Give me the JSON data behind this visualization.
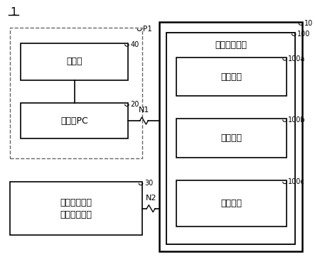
{
  "bg_color": "#ffffff",
  "fig_label": "1",
  "p1_label": "P1",
  "label_10": "10",
  "label_100": "100",
  "label_40": "40",
  "label_20": "20",
  "label_30": "30",
  "label_100a": "100a",
  "label_100b": "100b",
  "label_100c": "100c",
  "label_N1": "N1",
  "label_N2": "N2",
  "text_meg": "脑磁图",
  "text_client": "客户端PC",
  "text_mobile": "移动终端设备\n（智能手机）",
  "text_comprehensive": "综合评估单元",
  "text_receive": "接收单元",
  "text_process": "处理单元",
  "text_storage": "存储单元",
  "font_size_main": 9,
  "font_size_label": 7
}
